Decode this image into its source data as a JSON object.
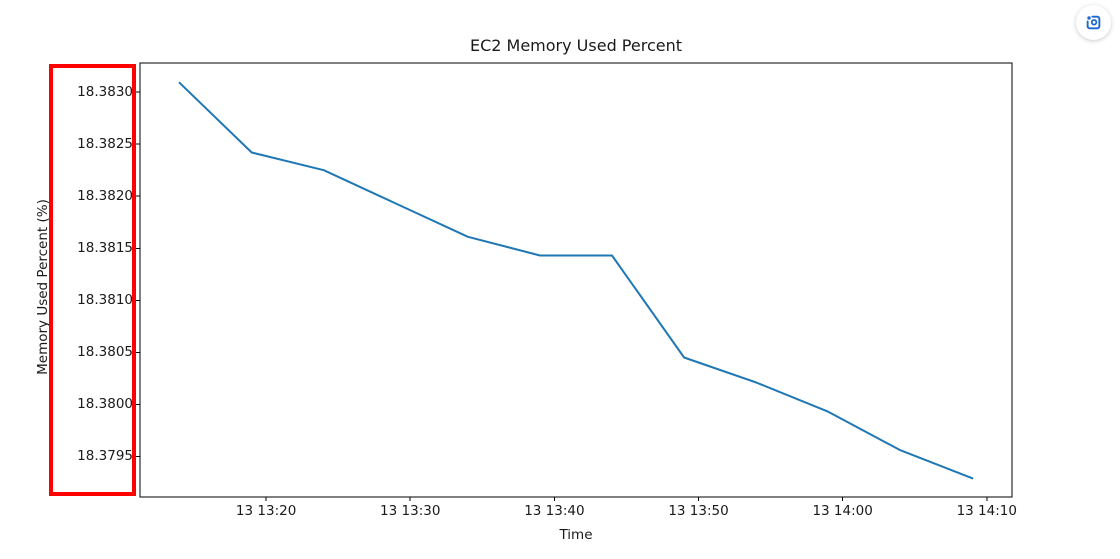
{
  "page": {
    "background_color": "#ffffff"
  },
  "controls": {
    "screenshot_button": {
      "icon": "screenshot-region-icon",
      "icon_color": "#1b66cf"
    }
  },
  "annotations": {
    "highlight_box": {
      "color": "#ff0000",
      "highlights": "y-axis tick labels"
    }
  },
  "chart_data": {
    "type": "line",
    "title": "EC2 Memory Used Percent",
    "xlabel": "Time",
    "ylabel": "Memory Used Percent (%)",
    "grid": false,
    "legend": "none",
    "line_color": "#1f77b4",
    "series": [
      {
        "name": "EC2 memory used percent",
        "color": "#1f77b4",
        "x": [
          "13:14",
          "13:19",
          "13:24",
          "13:29",
          "13:34",
          "13:39",
          "13:44",
          "13:49",
          "13:54",
          "13:59",
          "14:04",
          "14:09"
        ],
        "values": [
          18.38309,
          18.38242,
          18.38225,
          18.38193,
          18.38161,
          18.38143,
          18.38143,
          18.38045,
          18.38021,
          18.37993,
          18.37956,
          18.37929
        ]
      }
    ],
    "x_ticks": [
      {
        "label": "13 13:20",
        "time": "13:20"
      },
      {
        "label": "13 13:30",
        "time": "13:30"
      },
      {
        "label": "13 13:40",
        "time": "13:40"
      },
      {
        "label": "13 13:50",
        "time": "13:50"
      },
      {
        "label": "13 14:00",
        "time": "14:00"
      },
      {
        "label": "13 14:10",
        "time": "14:10"
      }
    ],
    "y_ticks": [
      "18.3830",
      "18.3825",
      "18.3820",
      "18.3815",
      "18.3810",
      "18.3805",
      "18.3800",
      "18.3795"
    ],
    "xlim_minutes": [
      791.25,
      851.75
    ],
    "ylim": [
      18.37911,
      18.38328
    ]
  }
}
